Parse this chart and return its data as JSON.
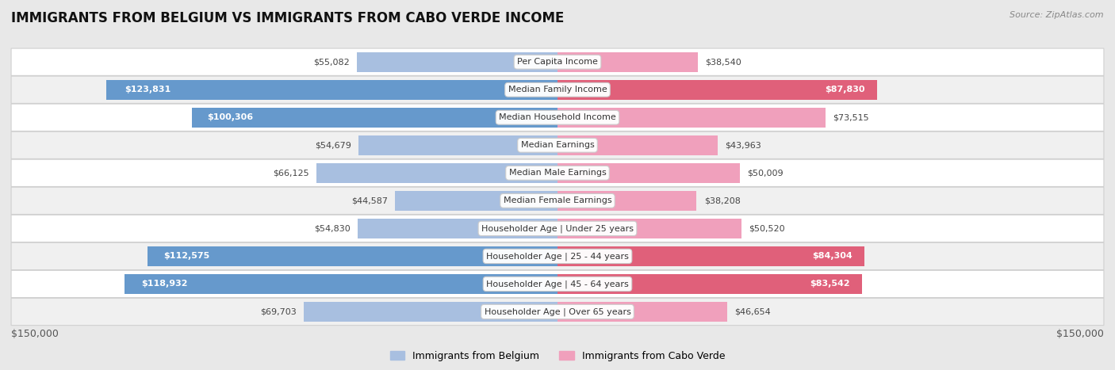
{
  "title": "IMMIGRANTS FROM BELGIUM VS IMMIGRANTS FROM CABO VERDE INCOME",
  "source": "Source: ZipAtlas.com",
  "categories": [
    "Per Capita Income",
    "Median Family Income",
    "Median Household Income",
    "Median Earnings",
    "Median Male Earnings",
    "Median Female Earnings",
    "Householder Age | Under 25 years",
    "Householder Age | 25 - 44 years",
    "Householder Age | 45 - 64 years",
    "Householder Age | Over 65 years"
  ],
  "belgium_values": [
    55082,
    123831,
    100306,
    54679,
    66125,
    44587,
    54830,
    112575,
    118932,
    69703
  ],
  "caboverde_values": [
    38540,
    87830,
    73515,
    43963,
    50009,
    38208,
    50520,
    84304,
    83542,
    46654
  ],
  "belgium_color": "#a8bfe0",
  "belgium_color_dark": "#6699cc",
  "caboverde_color": "#f0a0bc",
  "caboverde_color_dark": "#e0607a",
  "max_val": 150000,
  "x_label_left": "$150,000",
  "x_label_right": "$150,000",
  "legend_belgium": "Immigrants from Belgium",
  "legend_caboverde": "Immigrants from Cabo Verde",
  "background_color": "#f5f5f5",
  "row_bg_even": "#f7f7f7",
  "row_bg_odd": "#ffffff",
  "label_inside_threshold": 80000,
  "title_fontsize": 12,
  "source_fontsize": 8,
  "bar_label_fontsize": 8,
  "cat_label_fontsize": 8
}
